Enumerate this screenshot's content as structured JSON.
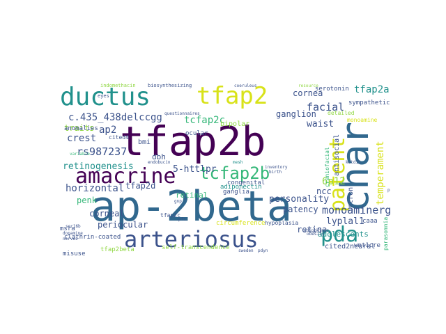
{
  "title": "",
  "palette": {
    "purple": "#440154",
    "indigo": "#3b528b",
    "blue": "#31688e",
    "teal": "#21918c",
    "green": "#35b779",
    "lime": "#90d743",
    "yellow": "#d8e219"
  },
  "words": [
    {
      "text": "tfap2b",
      "color": "#440154"
    },
    {
      "text": "ap-2beta",
      "color": "#31688e"
    },
    {
      "text": "char",
      "color": "#31688e"
    },
    {
      "text": "ductus",
      "color": "#21918c"
    },
    {
      "text": "tfap2",
      "color": "#d8e219"
    },
    {
      "text": "amacrine",
      "color": "#440154"
    },
    {
      "text": "patent",
      "color": "#d8e219"
    },
    {
      "text": "arteriosus",
      "color": "#3b528b"
    },
    {
      "text": "pda",
      "color": "#21918c"
    },
    {
      "text": "tcfap2b",
      "color": "#35b779"
    },
    {
      "text": "tfap2a",
      "color": "#21918c"
    },
    {
      "text": "c.435_438delccgg",
      "color": "#3b528b"
    },
    {
      "text": "tcfap2c",
      "color": "#35b779"
    },
    {
      "text": "rs987237",
      "color": "#3b528b"
    },
    {
      "text": "retinogenesis",
      "color": "#21918c"
    },
    {
      "text": "horizontal",
      "color": "#3b528b"
    },
    {
      "text": "facial",
      "color": "#3b528b"
    },
    {
      "text": "cornea",
      "color": "#3b528b"
    },
    {
      "text": "ganglion",
      "color": "#3b528b"
    },
    {
      "text": "monoaminergic",
      "color": "#3b528b"
    },
    {
      "text": "personality",
      "color": "#3b528b"
    },
    {
      "text": "crest",
      "color": "#3b528b"
    },
    {
      "text": "ap2",
      "color": "#3b528b"
    },
    {
      "text": "waist",
      "color": "#3b528b"
    },
    {
      "text": "6p12",
      "color": "#90d743"
    },
    {
      "text": "lyplal1",
      "color": "#3b528b"
    },
    {
      "text": "temperament",
      "color": "#d8e219"
    },
    {
      "text": "5-httlpr",
      "color": "#3b528b"
    },
    {
      "text": "tfap2d",
      "color": "#3b528b"
    },
    {
      "text": "periocular",
      "color": "#3b528b"
    },
    {
      "text": "corneal",
      "color": "#3b528b"
    },
    {
      "text": "retina",
      "color": "#3b528b"
    },
    {
      "text": "adolescents",
      "color": "#21918c"
    },
    {
      "text": "traits",
      "color": "#90d743"
    },
    {
      "text": "penk",
      "color": "#35b779"
    },
    {
      "text": "ncc",
      "color": "#3b528b"
    },
    {
      "text": "patency",
      "color": "#3b528b"
    },
    {
      "text": "dbh",
      "color": "#3b528b"
    },
    {
      "text": "bmi",
      "color": "#3b528b"
    },
    {
      "text": "anomalies",
      "color": "#3b528b"
    },
    {
      "text": "retinal",
      "color": "#35b779"
    },
    {
      "text": "serotonin",
      "color": "#3b528b"
    },
    {
      "text": "sympathetic",
      "color": "#3b528b"
    },
    {
      "text": "bipolar",
      "color": "#90d743"
    },
    {
      "text": "ocular",
      "color": "#3b528b"
    },
    {
      "text": "congenital",
      "color": "#3b528b"
    },
    {
      "text": "ganglia",
      "color": "#3b528b"
    },
    {
      "text": "adiponectin",
      "color": "#21918c"
    },
    {
      "text": "antisocial",
      "color": "#3b528b"
    },
    {
      "text": "intron",
      "color": "#3b528b"
    },
    {
      "text": "misuse",
      "color": "#3b528b"
    },
    {
      "text": "tfap2beta",
      "color": "#90d743"
    },
    {
      "text": "msra",
      "color": "#3b528b"
    },
    {
      "text": "clathrin-coated",
      "color": "#3b528b"
    },
    {
      "text": "cited2neural",
      "color": "#3b528b"
    },
    {
      "text": "wnt1cre",
      "color": "#3b528b"
    },
    {
      "text": "caaa",
      "color": "#3b528b"
    },
    {
      "text": "self-transcendence",
      "color": "#90d743"
    },
    {
      "text": "circumference",
      "color": "#d8e219"
    },
    {
      "text": "hypoplasia",
      "color": "#3b528b"
    },
    {
      "text": "tfap2c",
      "color": "#3b528b"
    },
    {
      "text": "cited4",
      "color": "#3b528b"
    },
    {
      "text": "detailed",
      "color": "#90d743"
    },
    {
      "text": "monoamine",
      "color": "#d8e219"
    },
    {
      "text": "craniofacial",
      "color": "#35b779"
    },
    {
      "text": "parasomnia",
      "color": "#35b779"
    },
    {
      "text": "indomethacin",
      "color": "#90d743"
    },
    {
      "text": "biosynthesizing",
      "color": "#3b528b"
    },
    {
      "text": "coeruleus",
      "color": "#3b528b"
    },
    {
      "text": "questionnaires",
      "color": "#3b528b"
    },
    {
      "text": "resource",
      "color": "#90d743"
    },
    {
      "text": "eyes",
      "color": "#3b528b"
    },
    {
      "text": "variable",
      "color": "#35b779"
    },
    {
      "text": "dopamine",
      "color": "#3b528b"
    },
    {
      "text": "nerves",
      "color": "#3b528b"
    },
    {
      "text": "sec16b",
      "color": "#3b528b"
    },
    {
      "text": "endobucin",
      "color": "#3b528b"
    },
    {
      "text": "inventory",
      "color": "#3b528b"
    },
    {
      "text": "birth",
      "color": "#3b528b"
    },
    {
      "text": "kctd15",
      "color": "#3b528b"
    },
    {
      "text": "obesity",
      "color": "#3b528b"
    },
    {
      "text": "pom",
      "color": "#3b528b"
    },
    {
      "text": "adipokines",
      "color": "#3b528b"
    },
    {
      "text": "sweden",
      "color": "#3b528b"
    },
    {
      "text": "pdyn",
      "color": "#3b528b"
    },
    {
      "text": "mesh",
      "color": "#21918c"
    },
    {
      "text": "gnp",
      "color": "#3b528b"
    },
    {
      "text": "pfc",
      "color": "#3b528b"
    }
  ]
}
